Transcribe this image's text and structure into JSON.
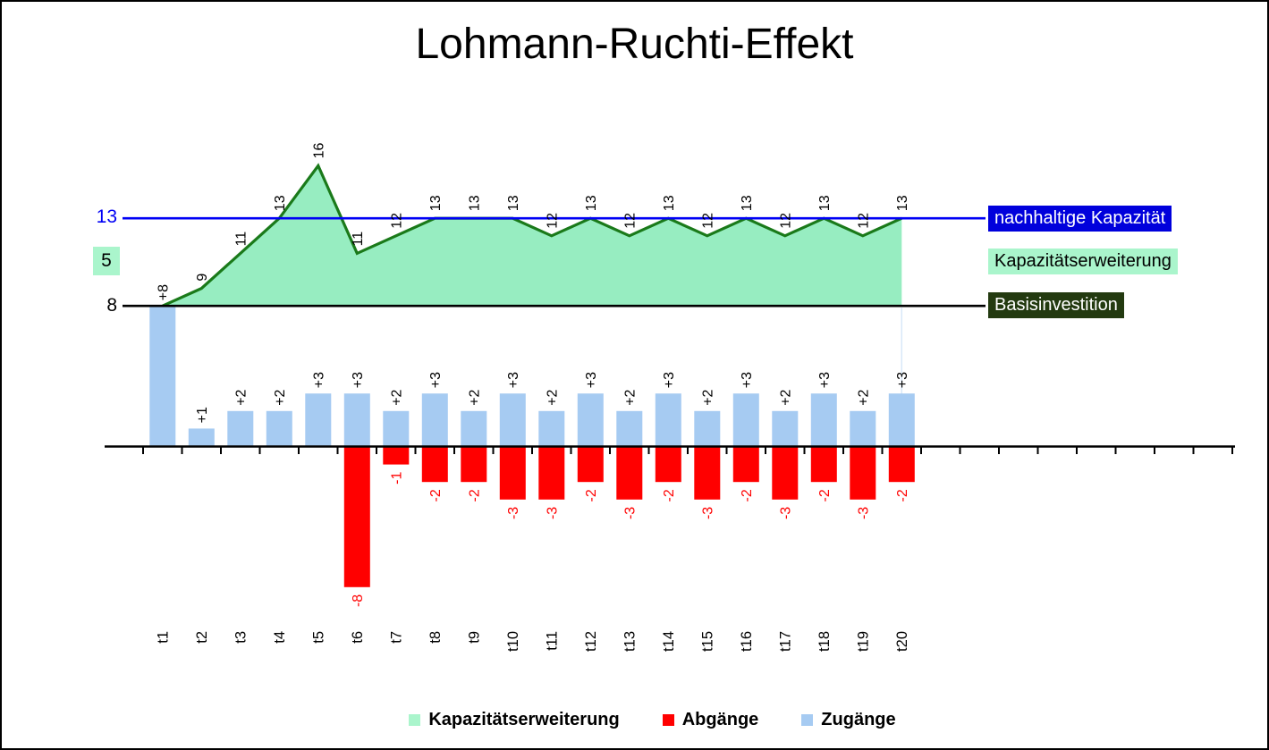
{
  "title": "Lohmann-Ruchti-Effekt",
  "chart_data": {
    "type": "combo (area + bar)",
    "categories": [
      "t1",
      "t2",
      "t3",
      "t4",
      "t5",
      "t6",
      "t7",
      "t8",
      "t9",
      "t10",
      "t11",
      "t12",
      "t13",
      "t14",
      "t15",
      "t16",
      "t17",
      "t18",
      "t19",
      "t20"
    ],
    "series": [
      {
        "name": "Kapazitätserweiterung",
        "type": "area",
        "fill": "#97EDC1",
        "line": "#1A7A1A",
        "values": [
          8,
          9,
          11,
          13,
          16,
          11,
          12,
          13,
          13,
          13,
          12,
          13,
          12,
          13,
          12,
          13,
          12,
          13,
          12,
          13
        ],
        "point_labels": [
          "",
          "9",
          "11",
          "13",
          "16",
          "11",
          "12",
          "13",
          "13",
          "13",
          "12",
          "13",
          "12",
          "13",
          "12",
          "13",
          "12",
          "13",
          "12",
          "13"
        ]
      },
      {
        "name": "Zugänge",
        "type": "bar",
        "color": "#A6CBF2",
        "values": [
          8,
          1,
          2,
          2,
          3,
          3,
          2,
          3,
          2,
          3,
          2,
          3,
          2,
          3,
          2,
          3,
          2,
          3,
          2,
          3
        ],
        "labels": [
          "+8",
          "+1",
          "+2",
          "+2",
          "+3",
          "+3",
          "+2",
          "+3",
          "+2",
          "+3",
          "+2",
          "+3",
          "+2",
          "+3",
          "+2",
          "+3",
          "+2",
          "+3",
          "+2",
          "+3"
        ],
        "label_color": "#000000"
      },
      {
        "name": "Abgänge",
        "type": "bar",
        "color": "#FF0000",
        "values": [
          0,
          0,
          0,
          0,
          0,
          -8,
          -1,
          -2,
          -2,
          -3,
          -3,
          -2,
          -3,
          -2,
          -3,
          -2,
          -3,
          -2,
          -3,
          -2
        ],
        "labels": [
          "",
          "",
          "",
          "",
          "",
          "-8",
          "-1",
          "-2",
          "-2",
          "-3",
          "-3",
          "-2",
          "-3",
          "-2",
          "-3",
          "-2",
          "-3",
          "-2",
          "-3",
          "-2"
        ],
        "label_color": "#FF0000"
      }
    ],
    "reference_lines": [
      {
        "value": 13,
        "color": "#0000F5",
        "name": "nachhaltige Kapazität"
      },
      {
        "value": 8,
        "color": "#000000",
        "name": "Basisinvestition"
      }
    ],
    "left_labels": [
      {
        "text": "13",
        "color": "#0000F5",
        "bg": ""
      },
      {
        "text": "5",
        "color": "#000000",
        "bg": "#AAF5CC"
      },
      {
        "text": "8",
        "color": "#000000",
        "bg": ""
      }
    ],
    "right_labels": [
      {
        "text": "nachhaltige Kapazität",
        "bg": "#0000DC",
        "fg": "#FFFFFF"
      },
      {
        "text": "Kapazitätserweiterung",
        "bg": "#AAF5CC",
        "fg": "#000000"
      },
      {
        "text": "Basisinvestition",
        "bg": "#233A10",
        "fg": "#FFFFFF"
      }
    ],
    "legend": {
      "items": [
        {
          "label": "Kapazitätserweiterung",
          "color": "#AAF5CC"
        },
        {
          "label": "Abgänge",
          "color": "#FF0000"
        },
        {
          "label": "Zugänge",
          "color": "#A6CBF2"
        }
      ]
    },
    "axis": {
      "grid": false,
      "tick_count": 29,
      "zero_line": true
    }
  }
}
